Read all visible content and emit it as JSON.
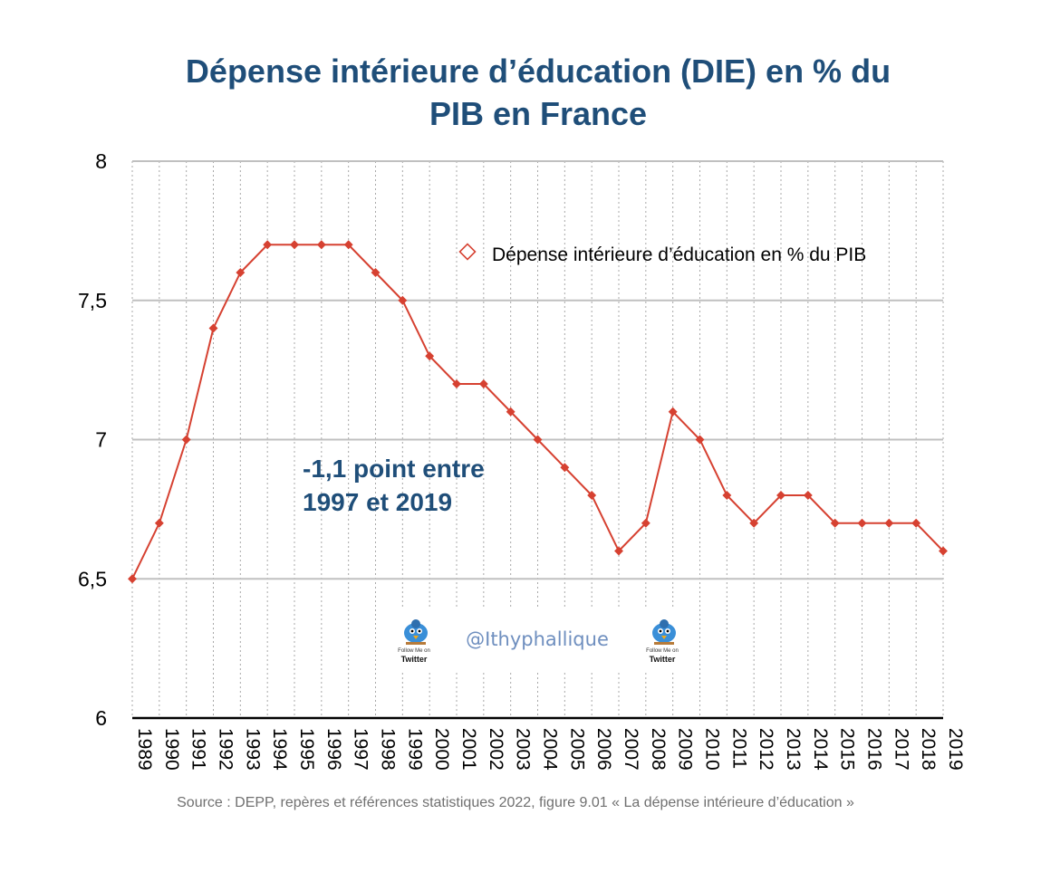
{
  "chart_data": {
    "type": "line",
    "title_lines": [
      "Dépense intérieure d’éducation (DIE) en % du",
      "PIB en France"
    ],
    "xlabel": "",
    "ylabel": "",
    "ylim": [
      6,
      8
    ],
    "yticks": [
      6,
      6.5,
      7,
      7.5,
      8
    ],
    "ytick_labels": [
      "6",
      "6,5",
      "7",
      "7,5",
      "8"
    ],
    "grid": "both",
    "legend_position": "top-right",
    "x": [
      "1989",
      "1990",
      "1991",
      "1992",
      "1993",
      "1994",
      "1995",
      "1996",
      "1997",
      "1998",
      "1999",
      "2000",
      "2001",
      "2002",
      "2003",
      "2004",
      "2005",
      "2006",
      "2007",
      "2008",
      "2009",
      "2010",
      "2011",
      "2012",
      "2013",
      "2014",
      "2015",
      "2016",
      "2017",
      "2018",
      "2019"
    ],
    "series": [
      {
        "name": "Dépense intérieure d’éducation en % du PIB",
        "color": "#d64131",
        "marker": "diamond",
        "values": [
          6.5,
          6.7,
          7.0,
          7.4,
          7.6,
          7.7,
          7.7,
          7.7,
          7.7,
          7.6,
          7.5,
          7.3,
          7.2,
          7.2,
          7.1,
          7.0,
          6.9,
          6.8,
          6.6,
          6.7,
          7.1,
          7.0,
          6.8,
          6.7,
          6.8,
          6.8,
          6.7,
          6.7,
          6.7,
          6.7,
          6.6
        ]
      }
    ],
    "annotation": [
      "-1,1 point entre",
      "1997 et 2019"
    ],
    "source": "Source : DEPP, repères et références statistiques 2022, figure 9.01 « La dépense intérieure d’éducation »"
  },
  "watermark": {
    "handle": "@Ithyphallique",
    "badge_caption": "Follow Me on",
    "badge_brand": "Twitter",
    "icon": "twitter-bird-icon"
  },
  "colors": {
    "title": "#1f4e79",
    "series": "#d64131",
    "grid": "#c0c0c0",
    "source": "#707070"
  }
}
